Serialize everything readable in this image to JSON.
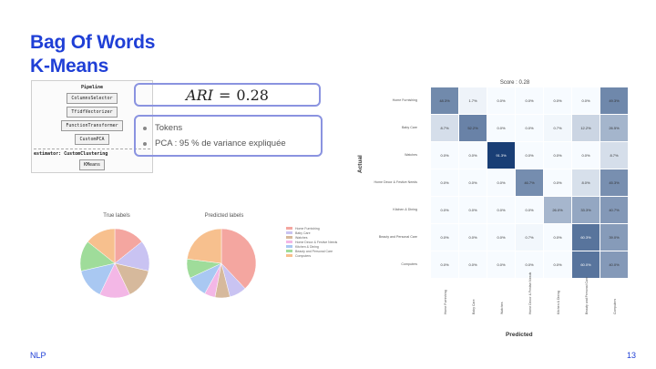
{
  "slide": {
    "title_line1": "Bag Of Words",
    "title_line2": "K-Means",
    "footer_left": "NLP",
    "page_number": "13"
  },
  "pipeline": {
    "header": "Pipeline",
    "steps": [
      "ColumnsSelector",
      "TfidfVectorizer",
      "FunctionTransformer",
      "CustomPCA"
    ],
    "estimator_label": "estimator: CustomClustering",
    "estimator_step": "KMeans"
  },
  "metric": {
    "name": "ARI",
    "operator": "=",
    "value": "0.28"
  },
  "bullets": [
    "Tokens",
    "PCA : 95 % de variance expliquée"
  ],
  "pies": {
    "true_title": "True labels",
    "pred_title": "Predicted labels",
    "colors": [
      "#f4a6a0",
      "#c9c3f2",
      "#d6b99c",
      "#f3b7e6",
      "#a9c8f2",
      "#9fdc9a",
      "#f7c08e"
    ]
  },
  "chart_data": {
    "type": "heatmap",
    "title": "Score : 0.28",
    "xlabel": "Predicted",
    "ylabel": "Actual",
    "rows": [
      "Home Furnishing",
      "Baby Care",
      "Watches",
      "Home Decor & Festive Needs",
      "Kitchen & Dining",
      "Beauty and Personal Care",
      "Computers"
    ],
    "cols": [
      "Home Furnishing",
      "Baby Care",
      "Watches",
      "Home Decor & Festive Needs",
      "Kitchen & Dining",
      "Beauty and Personal Care",
      "Computers"
    ],
    "values": [
      [
        48.3,
        1.7,
        0.0,
        0.0,
        0.0,
        0.0,
        49.3
      ],
      [
        8.7,
        52.2,
        0.0,
        0.0,
        0.7,
        12.2,
        26.5
      ],
      [
        0.0,
        0.0,
        91.3,
        0.0,
        0.0,
        0.0,
        8.7
      ],
      [
        0.0,
        0.0,
        0.0,
        46.7,
        0.0,
        8.0,
        45.3
      ],
      [
        0.0,
        0.0,
        0.0,
        0.0,
        26.0,
        33.3,
        40.7
      ],
      [
        0.0,
        0.0,
        0.0,
        0.7,
        0.0,
        60.3,
        39.0
      ],
      [
        0.0,
        0.0,
        0.0,
        0.0,
        0.0,
        60.0,
        40.0
      ]
    ]
  }
}
